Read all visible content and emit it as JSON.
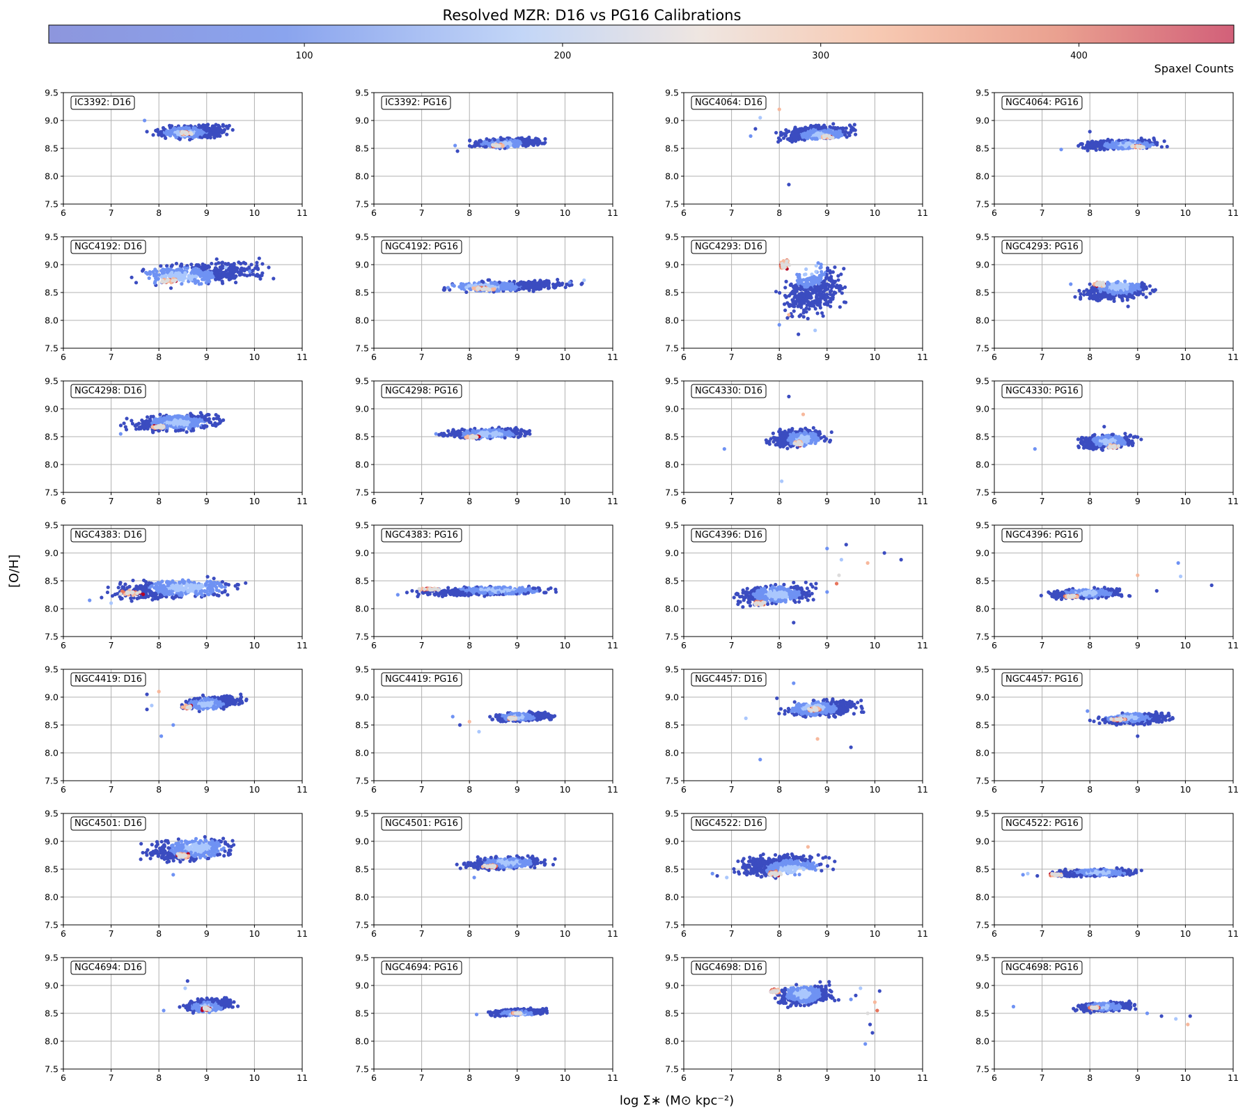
{
  "figure": {
    "title": "Resolved MZR: D16 vs PG16 Calibrations",
    "xlabel": "log Σ∗ (M⊙ kpc⁻²)",
    "ylabel": "[O/H]"
  },
  "colorbar": {
    "label": "Spaxel Counts",
    "colormap": "coolwarm",
    "range": [
      1,
      460
    ],
    "ticks": [
      100,
      200,
      300,
      400
    ],
    "colors": [
      "#3b4cc0",
      "#6f92f3",
      "#aac7fd",
      "#dddcdc",
      "#f7b89c",
      "#e7745b",
      "#b40426"
    ]
  },
  "chart_data": {
    "type": "scatter",
    "grid": true,
    "shared_axes": {
      "xlim": [
        6,
        11
      ],
      "ylim": [
        7.5,
        9.5
      ],
      "xticks": [
        6,
        7,
        8,
        9,
        10,
        11
      ],
      "yticks": [
        7.5,
        8.0,
        8.5,
        9.0,
        9.5
      ]
    },
    "panels": [
      {
        "label": "IC3392: D16",
        "x": [
          7.8,
          9.6
        ],
        "y": [
          8.6,
          9.0
        ],
        "center": [
          8.55,
          8.78
        ],
        "peak": [
          8.55,
          8.77
        ],
        "out": [
          [
            7.7,
            9.0
          ],
          [
            7.75,
            8.8
          ]
        ]
      },
      {
        "label": "IC3392: PG16",
        "x": [
          7.9,
          9.7
        ],
        "y": [
          8.45,
          8.75
        ],
        "center": [
          8.7,
          8.58
        ],
        "peak": [
          8.6,
          8.55
        ],
        "out": [
          [
            7.7,
            8.55
          ],
          [
            7.75,
            8.45
          ]
        ]
      },
      {
        "label": "NGC4064: D16",
        "x": [
          7.8,
          9.7
        ],
        "y": [
          8.55,
          9.0
        ],
        "center": [
          8.9,
          8.74
        ],
        "peak": [
          9.0,
          8.7
        ],
        "out": [
          [
            7.4,
            8.72
          ],
          [
            8.2,
            7.85
          ],
          [
            7.6,
            9.05
          ],
          [
            8.0,
            9.2
          ],
          [
            7.5,
            8.85
          ]
        ]
      },
      {
        "label": "NGC4064: PG16",
        "x": [
          7.6,
          9.7
        ],
        "y": [
          8.42,
          8.72
        ],
        "center": [
          8.8,
          8.56
        ],
        "peak": [
          9.0,
          8.53
        ],
        "out": [
          [
            7.4,
            8.48
          ],
          [
            8.0,
            8.8
          ]
        ]
      },
      {
        "label": "NGC4192: D16",
        "x": [
          7.3,
          10.5
        ],
        "y": [
          8.5,
          9.2
        ],
        "center": [
          8.4,
          8.78
        ],
        "peak": [
          8.2,
          8.72
        ],
        "out": [
          [
            9.9,
            8.88
          ],
          [
            10.3,
            8.95
          ],
          [
            9.4,
            8.95
          ]
        ]
      },
      {
        "label": "NGC4192: PG16",
        "x": [
          7.3,
          10.5
        ],
        "y": [
          8.45,
          8.78
        ],
        "center": [
          8.3,
          8.6
        ],
        "peak": [
          8.3,
          8.57
        ],
        "out": [
          [
            10.1,
            8.68
          ],
          [
            9.6,
            8.67
          ],
          [
            10.4,
            8.72
          ]
        ]
      },
      {
        "label": "NGC4293: D16",
        "x": [
          7.9,
          9.5
        ],
        "y": [
          7.8,
          9.25
        ],
        "center": [
          8.6,
          8.95
        ],
        "peak": [
          8.1,
          9.0
        ],
        "out": [
          [
            8.0,
            7.92
          ],
          [
            8.4,
            7.75
          ],
          [
            8.75,
            7.82
          ],
          [
            8.2,
            8.1
          ],
          [
            8.35,
            8.3
          ]
        ]
      },
      {
        "label": "NGC4293: PG16",
        "x": [
          7.6,
          9.5
        ],
        "y": [
          8.25,
          8.8
        ],
        "center": [
          8.6,
          8.6
        ],
        "peak": [
          8.2,
          8.65
        ],
        "out": [
          [
            7.6,
            8.65
          ],
          [
            8.8,
            8.25
          ]
        ]
      },
      {
        "label": "NGC4298: D16",
        "x": [
          7.2,
          9.5
        ],
        "y": [
          8.5,
          9.0
        ],
        "center": [
          8.4,
          8.75
        ],
        "peak": [
          8.0,
          8.68
        ],
        "out": [
          [
            7.2,
            8.55
          ]
        ]
      },
      {
        "label": "NGC4298: PG16",
        "x": [
          7.2,
          9.5
        ],
        "y": [
          8.4,
          8.72
        ],
        "center": [
          8.4,
          8.55
        ],
        "peak": [
          8.1,
          8.5
        ],
        "out": [
          [
            7.3,
            8.55
          ]
        ]
      },
      {
        "label": "NGC4330: D16",
        "x": [
          7.7,
          9.1
        ],
        "y": [
          8.2,
          8.75
        ],
        "center": [
          8.5,
          8.45
        ],
        "peak": [
          8.4,
          8.38
        ],
        "out": [
          [
            6.85,
            8.28
          ],
          [
            8.2,
            9.22
          ],
          [
            8.05,
            7.7
          ],
          [
            8.5,
            8.9
          ]
        ]
      },
      {
        "label": "NGC4330: PG16",
        "x": [
          7.6,
          9.1
        ],
        "y": [
          8.2,
          8.62
        ],
        "center": [
          8.4,
          8.42
        ],
        "peak": [
          8.5,
          8.32
        ],
        "out": [
          [
            6.85,
            8.28
          ],
          [
            8.3,
            8.68
          ]
        ]
      },
      {
        "label": "NGC4383: D16",
        "x": [
          6.6,
          10.0
        ],
        "y": [
          8.05,
          8.65
        ],
        "center": [
          8.6,
          8.38
        ],
        "peak": [
          7.4,
          8.28
        ],
        "out": [
          [
            6.55,
            8.15
          ],
          [
            6.8,
            8.2
          ],
          [
            7.0,
            8.1
          ]
        ]
      },
      {
        "label": "NGC4383: PG16",
        "x": [
          6.6,
          10.0
        ],
        "y": [
          8.18,
          8.45
        ],
        "center": [
          8.6,
          8.33
        ],
        "peak": [
          7.2,
          8.35
        ],
        "out": [
          [
            6.5,
            8.25
          ],
          [
            6.8,
            8.32
          ]
        ]
      },
      {
        "label": "NGC4396: D16",
        "x": [
          6.9,
          8.9
        ],
        "y": [
          7.95,
          8.55
        ],
        "center": [
          7.95,
          8.25
        ],
        "peak": [
          7.6,
          8.1
        ],
        "out": [
          [
            9.0,
            9.08
          ],
          [
            9.4,
            9.15
          ],
          [
            9.3,
            8.88
          ],
          [
            9.85,
            8.82
          ],
          [
            10.55,
            8.88
          ],
          [
            9.0,
            8.3
          ],
          [
            9.25,
            8.6
          ],
          [
            8.3,
            7.75
          ],
          [
            9.2,
            8.45
          ],
          [
            10.2,
            9.0
          ]
        ]
      },
      {
        "label": "NGC4396: PG16",
        "x": [
          6.9,
          8.9
        ],
        "y": [
          8.12,
          8.42
        ],
        "center": [
          7.95,
          8.28
        ],
        "peak": [
          7.6,
          8.22
        ],
        "out": [
          [
            9.85,
            8.82
          ],
          [
            10.55,
            8.42
          ],
          [
            9.9,
            8.58
          ],
          [
            9.0,
            8.6
          ],
          [
            9.4,
            8.32
          ]
        ]
      },
      {
        "label": "NGC4419: D16",
        "x": [
          8.4,
          9.9
        ],
        "y": [
          8.7,
          9.1
        ],
        "center": [
          9.0,
          8.88
        ],
        "peak": [
          8.6,
          8.82
        ],
        "out": [
          [
            8.05,
            8.3
          ],
          [
            7.75,
            8.78
          ],
          [
            7.85,
            8.85
          ],
          [
            8.0,
            9.1
          ],
          [
            7.75,
            9.05
          ],
          [
            8.3,
            8.5
          ]
        ]
      },
      {
        "label": "NGC4419: PG16",
        "x": [
          8.4,
          9.9
        ],
        "y": [
          8.52,
          8.78
        ],
        "center": [
          9.0,
          8.65
        ],
        "peak": [
          8.9,
          8.62
        ],
        "out": [
          [
            7.65,
            8.65
          ],
          [
            7.8,
            8.5
          ],
          [
            8.2,
            8.38
          ],
          [
            8.0,
            8.56
          ]
        ]
      },
      {
        "label": "NGC4457: D16",
        "x": [
          7.9,
          9.9
        ],
        "y": [
          8.55,
          9.05
        ],
        "center": [
          8.7,
          8.8
        ],
        "peak": [
          8.7,
          8.78
        ],
        "out": [
          [
            7.6,
            7.88
          ],
          [
            7.95,
            8.98
          ],
          [
            7.3,
            8.62
          ],
          [
            8.8,
            8.25
          ],
          [
            9.5,
            8.1
          ],
          [
            8.3,
            9.25
          ]
        ]
      },
      {
        "label": "NGC4457: PG16",
        "x": [
          8.0,
          9.9
        ],
        "y": [
          8.45,
          8.78
        ],
        "center": [
          8.8,
          8.63
        ],
        "peak": [
          8.6,
          8.6
        ],
        "out": [
          [
            7.95,
            8.75
          ],
          [
            9.0,
            8.3
          ]
        ]
      },
      {
        "label": "NGC4501: D16",
        "x": [
          7.5,
          9.8
        ],
        "y": [
          8.5,
          9.2
        ],
        "center": [
          8.8,
          8.88
        ],
        "peak": [
          8.5,
          8.75
        ],
        "out": [
          [
            8.3,
            8.4
          ]
        ]
      },
      {
        "label": "NGC4501: PG16",
        "x": [
          7.7,
          9.8
        ],
        "y": [
          8.42,
          8.8
        ],
        "center": [
          8.8,
          8.62
        ],
        "peak": [
          8.45,
          8.55
        ],
        "out": [
          [
            8.1,
            8.35
          ]
        ]
      },
      {
        "label": "NGC4522: D16",
        "x": [
          6.9,
          9.2
        ],
        "y": [
          8.25,
          8.9
        ],
        "center": [
          8.3,
          8.5
        ],
        "peak": [
          7.9,
          8.42
        ],
        "out": [
          [
            6.6,
            8.42
          ],
          [
            6.7,
            8.38
          ],
          [
            6.9,
            8.35
          ],
          [
            8.6,
            8.9
          ]
        ]
      },
      {
        "label": "NGC4522: PG16",
        "x": [
          7.0,
          9.2
        ],
        "y": [
          8.32,
          8.55
        ],
        "center": [
          8.2,
          8.44
        ],
        "peak": [
          7.3,
          8.4
        ],
        "out": [
          [
            6.6,
            8.4
          ],
          [
            6.9,
            8.38
          ],
          [
            6.7,
            8.42
          ]
        ]
      },
      {
        "label": "NGC4694: D16",
        "x": [
          8.4,
          9.7
        ],
        "y": [
          8.45,
          8.85
        ],
        "center": [
          9.0,
          8.6
        ],
        "peak": [
          9.0,
          8.58
        ],
        "out": [
          [
            8.1,
            8.55
          ],
          [
            8.6,
            9.08
          ],
          [
            8.55,
            8.95
          ]
        ]
      },
      {
        "label": "NGC4694: PG16",
        "x": [
          8.3,
          9.7
        ],
        "y": [
          8.42,
          8.62
        ],
        "center": [
          9.0,
          8.5
        ],
        "peak": [
          9.0,
          8.5
        ],
        "out": [
          [
            8.15,
            8.48
          ]
        ]
      },
      {
        "label": "NGC4698: D16",
        "x": [
          7.8,
          9.3
        ],
        "y": [
          8.5,
          9.15
        ],
        "center": [
          8.5,
          8.85
        ],
        "peak": [
          7.9,
          8.9
        ],
        "out": [
          [
            9.8,
            7.95
          ],
          [
            9.95,
            8.15
          ],
          [
            9.7,
            8.95
          ],
          [
            10.0,
            8.7
          ],
          [
            10.1,
            8.9
          ],
          [
            9.5,
            8.75
          ],
          [
            9.85,
            8.5
          ],
          [
            9.6,
            8.82
          ],
          [
            10.05,
            8.55
          ],
          [
            9.9,
            8.3
          ]
        ]
      },
      {
        "label": "NGC4698: PG16",
        "x": [
          7.6,
          9.0
        ],
        "y": [
          8.48,
          8.75
        ],
        "center": [
          8.3,
          8.62
        ],
        "peak": [
          8.1,
          8.6
        ],
        "out": [
          [
            6.4,
            8.62
          ],
          [
            9.5,
            8.45
          ],
          [
            9.8,
            8.4
          ],
          [
            10.05,
            8.3
          ],
          [
            10.1,
            8.45
          ],
          [
            9.2,
            8.5
          ]
        ]
      }
    ]
  }
}
